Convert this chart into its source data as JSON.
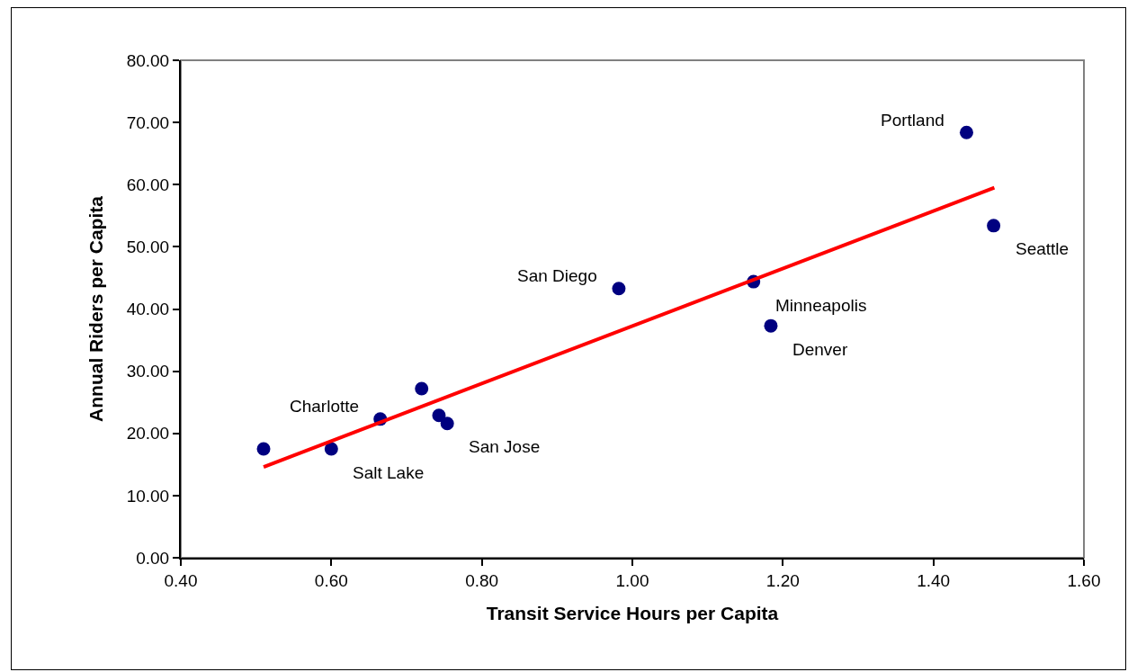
{
  "chart_data": {
    "type": "scatter",
    "xlabel": "Transit Service Hours per Capita",
    "ylabel": "Annual Riders per Capita",
    "x": [
      0.51,
      0.6,
      0.665,
      0.72,
      0.743,
      0.754,
      0.982,
      1.161,
      1.184,
      1.444,
      1.48
    ],
    "series": [
      {
        "color": "#000080",
        "marker": "circle",
        "values": [
          17.5,
          17.5,
          22.3,
          27.2,
          22.9,
          21.6,
          43.3,
          44.4,
          37.3,
          68.4,
          53.4
        ]
      },
      {
        "type": "line",
        "color": "#ff0000",
        "line_style": "solid",
        "x": [
          0.51,
          1.481
        ],
        "values": [
          14.6,
          59.5
        ]
      }
    ],
    "annotations": [
      {
        "text": "Portland",
        "x": 1.444,
        "y": 68.4
      },
      {
        "text": "Seattle",
        "x": 1.48,
        "y": 53.4
      },
      {
        "text": "Minneapolis",
        "x": 1.161,
        "y": 44.4
      },
      {
        "text": "Denver",
        "x": 1.184,
        "y": 37.3
      },
      {
        "text": "San Diego",
        "x": 0.982,
        "y": 43.3
      },
      {
        "text": "San Jose",
        "x": 0.754,
        "y": 21.6
      },
      {
        "text": "Charlotte",
        "x": 0.665,
        "y": 22.3
      },
      {
        "text": "Salt Lake",
        "x": 0.6,
        "y": 17.5
      }
    ],
    "xlim": [
      0.4,
      1.6
    ],
    "xticks": [
      {
        "value": 0.4,
        "label": "0.40"
      },
      {
        "value": 0.6,
        "label": "0.60"
      },
      {
        "value": 0.8,
        "label": "0.80"
      },
      {
        "value": 1.0,
        "label": "1.00"
      },
      {
        "value": 1.2,
        "label": "1.20"
      },
      {
        "value": 1.4,
        "label": "1.40"
      },
      {
        "value": 1.6,
        "label": "1.60"
      }
    ],
    "ylim": [
      0,
      80
    ],
    "yticks": [
      {
        "value": 0,
        "label": "0.00"
      },
      {
        "value": 10,
        "label": "10.00"
      },
      {
        "value": 20,
        "label": "20.00"
      },
      {
        "value": 30,
        "label": "30.00"
      },
      {
        "value": 40,
        "label": "40.00"
      },
      {
        "value": 50,
        "label": "50.00"
      },
      {
        "value": 60,
        "label": "60.00"
      },
      {
        "value": 70,
        "label": "70.00"
      },
      {
        "value": 80,
        "label": "80.00"
      }
    ],
    "grid": false,
    "legend": false
  }
}
